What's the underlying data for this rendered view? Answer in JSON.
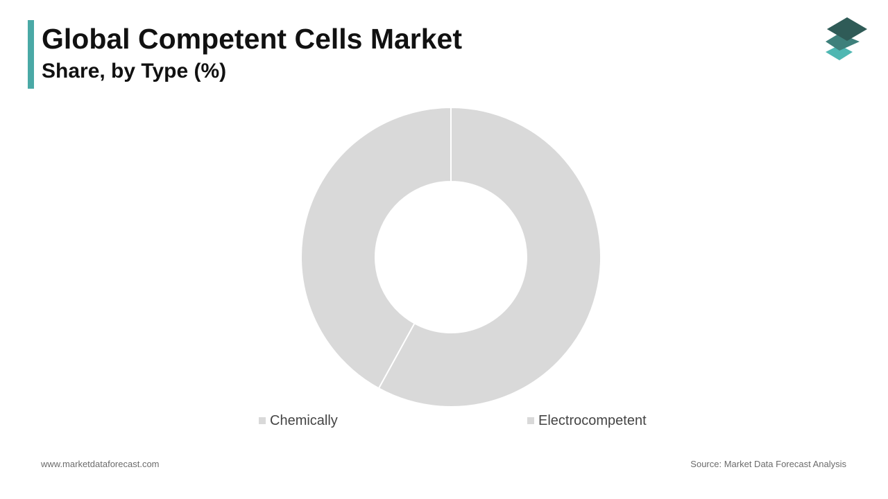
{
  "header": {
    "title": "Global Competent Cells Market",
    "subtitle": "Share, by Type (%)"
  },
  "colors": {
    "accent": "#4aa9a6",
    "logo_top": "#2f5b57",
    "logo_middle": "#3e807b",
    "logo_bottom": "#4fb7b2",
    "segment": "#d9d9d9",
    "separator": "#ffffff"
  },
  "logo": {
    "icon": "stacked-layers-icon"
  },
  "chart_data": {
    "type": "pie",
    "variant": "donut",
    "categories": [
      "Electrocompetent",
      "Chemically"
    ],
    "values": [
      58,
      42
    ],
    "legend": [
      "Chemically",
      "Electrocompetent"
    ],
    "legend_position": "bottom"
  },
  "footer": {
    "website": "www.marketdataforecast.com",
    "source": "Source: Market Data Forecast Analysis"
  }
}
